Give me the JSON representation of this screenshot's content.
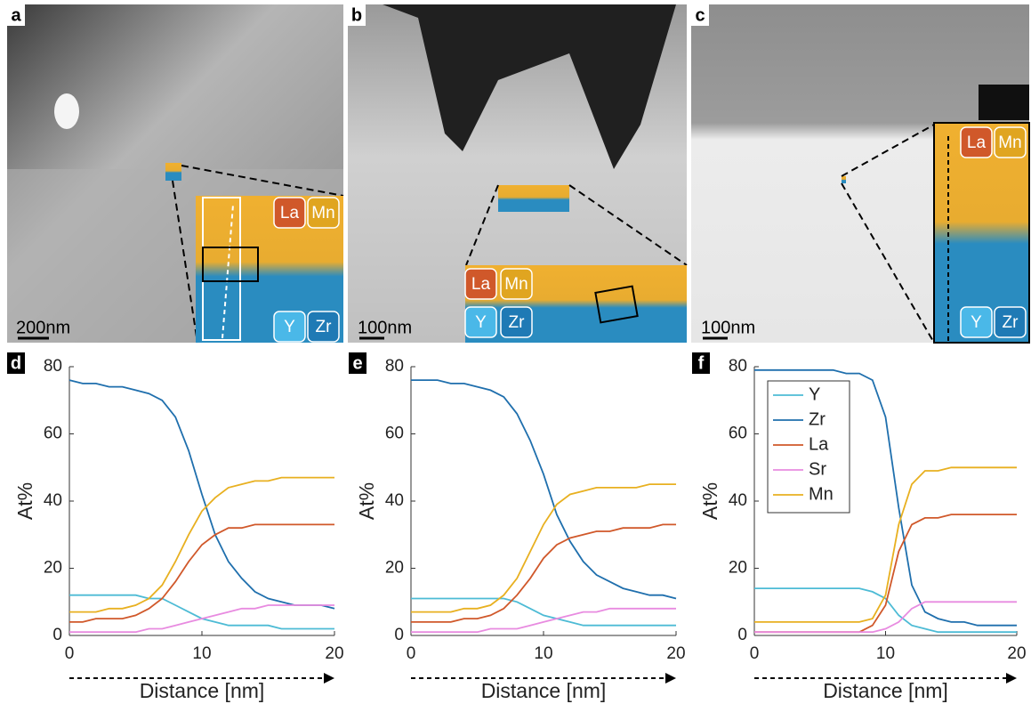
{
  "images": [
    {
      "label": "a",
      "scale": "200nm",
      "elements": [
        "La",
        "Mn",
        "Y",
        "Zr"
      ]
    },
    {
      "label": "b",
      "scale": "100nm",
      "elements": [
        "La",
        "Mn",
        "Y",
        "Zr"
      ]
    },
    {
      "label": "c",
      "scale": "100nm",
      "elements": [
        "La",
        "Mn",
        "Y",
        "Zr"
      ]
    }
  ],
  "chart_data": [
    {
      "type": "line",
      "label": "d",
      "xlabel": "Distance [nm]",
      "ylabel": "At%",
      "xlim": [
        0,
        20
      ],
      "ylim": [
        0,
        80
      ],
      "xticks": [
        0,
        10,
        20
      ],
      "yticks": [
        0,
        20,
        40,
        60,
        80
      ],
      "legend": false,
      "x": [
        0,
        1,
        2,
        3,
        4,
        5,
        6,
        7,
        8,
        9,
        10,
        11,
        12,
        13,
        14,
        15,
        16,
        17,
        18,
        19,
        20
      ],
      "series": [
        {
          "name": "Y",
          "color": "#4dbbd5",
          "values": [
            12,
            12,
            12,
            12,
            12,
            12,
            11,
            11,
            9,
            7,
            5,
            4,
            3,
            3,
            3,
            3,
            2,
            2,
            2,
            2,
            2
          ]
        },
        {
          "name": "Zr",
          "color": "#1f6fad",
          "values": [
            76,
            75,
            75,
            74,
            74,
            73,
            72,
            70,
            65,
            55,
            42,
            30,
            22,
            17,
            13,
            11,
            10,
            9,
            9,
            9,
            8
          ]
        },
        {
          "name": "La",
          "color": "#d0582a",
          "values": [
            4,
            4,
            5,
            5,
            5,
            6,
            8,
            11,
            16,
            22,
            27,
            30,
            32,
            32,
            33,
            33,
            33,
            33,
            33,
            33,
            33
          ]
        },
        {
          "name": "Sr",
          "color": "#e88be0",
          "values": [
            1,
            1,
            1,
            1,
            1,
            1,
            2,
            2,
            3,
            4,
            5,
            6,
            7,
            8,
            8,
            9,
            9,
            9,
            9,
            9,
            9
          ]
        },
        {
          "name": "Mn",
          "color": "#e8b020",
          "values": [
            7,
            7,
            7,
            8,
            8,
            9,
            11,
            15,
            22,
            30,
            37,
            41,
            44,
            45,
            46,
            46,
            47,
            47,
            47,
            47,
            47
          ]
        }
      ]
    },
    {
      "type": "line",
      "label": "e",
      "xlabel": "Distance [nm]",
      "ylabel": "At%",
      "xlim": [
        0,
        20
      ],
      "ylim": [
        0,
        80
      ],
      "xticks": [
        0,
        10,
        20
      ],
      "yticks": [
        0,
        20,
        40,
        60,
        80
      ],
      "legend": false,
      "x": [
        0,
        1,
        2,
        3,
        4,
        5,
        6,
        7,
        8,
        9,
        10,
        11,
        12,
        13,
        14,
        15,
        16,
        17,
        18,
        19,
        20
      ],
      "series": [
        {
          "name": "Y",
          "color": "#4dbbd5",
          "values": [
            11,
            11,
            11,
            11,
            11,
            11,
            11,
            11,
            10,
            8,
            6,
            5,
            4,
            3,
            3,
            3,
            3,
            3,
            3,
            3,
            3
          ]
        },
        {
          "name": "Zr",
          "color": "#1f6fad",
          "values": [
            76,
            76,
            76,
            75,
            75,
            74,
            73,
            71,
            66,
            58,
            48,
            36,
            28,
            22,
            18,
            16,
            14,
            13,
            12,
            12,
            11
          ]
        },
        {
          "name": "La",
          "color": "#d0582a",
          "values": [
            4,
            4,
            4,
            4,
            5,
            5,
            6,
            8,
            12,
            17,
            23,
            27,
            29,
            30,
            31,
            31,
            32,
            32,
            32,
            33,
            33
          ]
        },
        {
          "name": "Sr",
          "color": "#e88be0",
          "values": [
            1,
            1,
            1,
            1,
            1,
            1,
            2,
            2,
            2,
            3,
            4,
            5,
            6,
            7,
            7,
            8,
            8,
            8,
            8,
            8,
            8
          ]
        },
        {
          "name": "Mn",
          "color": "#e8b020",
          "values": [
            7,
            7,
            7,
            7,
            8,
            8,
            9,
            12,
            17,
            25,
            33,
            39,
            42,
            43,
            44,
            44,
            44,
            44,
            45,
            45,
            45
          ]
        }
      ]
    },
    {
      "type": "line",
      "label": "f",
      "xlabel": "Distance [nm]",
      "ylabel": "At%",
      "xlim": [
        0,
        20
      ],
      "ylim": [
        0,
        80
      ],
      "xticks": [
        0,
        10,
        20
      ],
      "yticks": [
        0,
        20,
        40,
        60,
        80
      ],
      "legend": "upper left",
      "x": [
        0,
        1,
        2,
        3,
        4,
        5,
        6,
        7,
        8,
        9,
        10,
        11,
        12,
        13,
        14,
        15,
        16,
        17,
        18,
        19,
        20
      ],
      "series": [
        {
          "name": "Y",
          "color": "#4dbbd5",
          "values": [
            14,
            14,
            14,
            14,
            14,
            14,
            14,
            14,
            14,
            13,
            11,
            6,
            3,
            2,
            1,
            1,
            1,
            1,
            1,
            1,
            1
          ]
        },
        {
          "name": "Zr",
          "color": "#1f6fad",
          "values": [
            79,
            79,
            79,
            79,
            79,
            79,
            79,
            78,
            78,
            76,
            65,
            38,
            15,
            7,
            5,
            4,
            4,
            3,
            3,
            3,
            3
          ]
        },
        {
          "name": "La",
          "color": "#d0582a",
          "values": [
            1,
            1,
            1,
            1,
            1,
            1,
            1,
            1,
            1,
            3,
            9,
            25,
            33,
            35,
            35,
            36,
            36,
            36,
            36,
            36,
            36
          ]
        },
        {
          "name": "Sr",
          "color": "#e88be0",
          "values": [
            1,
            1,
            1,
            1,
            1,
            1,
            1,
            1,
            1,
            1,
            2,
            4,
            8,
            10,
            10,
            10,
            10,
            10,
            10,
            10,
            10
          ]
        },
        {
          "name": "Mn",
          "color": "#e8b020",
          "values": [
            4,
            4,
            4,
            4,
            4,
            4,
            4,
            4,
            4,
            5,
            12,
            33,
            45,
            49,
            49,
            50,
            50,
            50,
            50,
            50,
            50
          ]
        }
      ]
    }
  ]
}
